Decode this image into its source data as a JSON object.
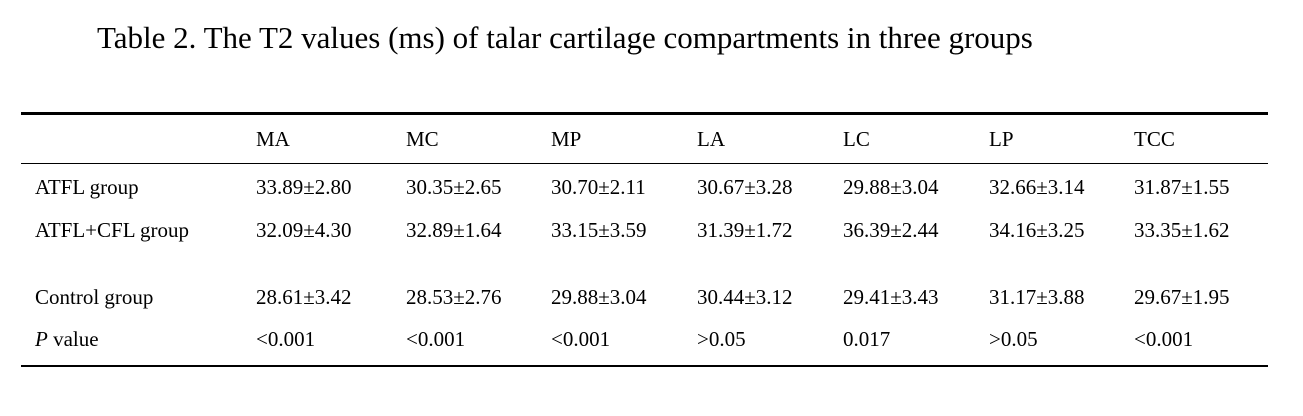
{
  "caption": "Table 2. The T2 values (ms) of talar cartilage compartments in three groups",
  "table": {
    "headers": [
      "",
      "MA",
      "MC",
      "MP",
      "LA",
      "LC",
      "LP",
      "TCC"
    ],
    "rows": [
      {
        "label": "ATFL group",
        "cells": [
          "33.89±2.80",
          "30.35±2.65",
          "30.70±2.11",
          "30.67±3.28",
          "29.88±3.04",
          "32.66±3.14",
          "31.87±1.55"
        ]
      },
      {
        "label": "ATFL+CFL group",
        "cells": [
          "32.09±4.30",
          "32.89±1.64",
          "33.15±3.59",
          "31.39±1.72",
          "36.39±2.44",
          "34.16±3.25",
          "33.35±1.62"
        ]
      },
      {
        "label": "Control group",
        "cells": [
          "28.61±3.42",
          "28.53±2.76",
          "29.88±3.04",
          "30.44±3.12",
          "29.41±3.43",
          "31.17±3.88",
          "29.67±1.95"
        ]
      },
      {
        "label_italic": "P",
        "label": " value",
        "cells": [
          "<0.001",
          "<0.001",
          "<0.001",
          ">0.05",
          "0.017",
          ">0.05",
          "<0.001"
        ]
      }
    ]
  }
}
